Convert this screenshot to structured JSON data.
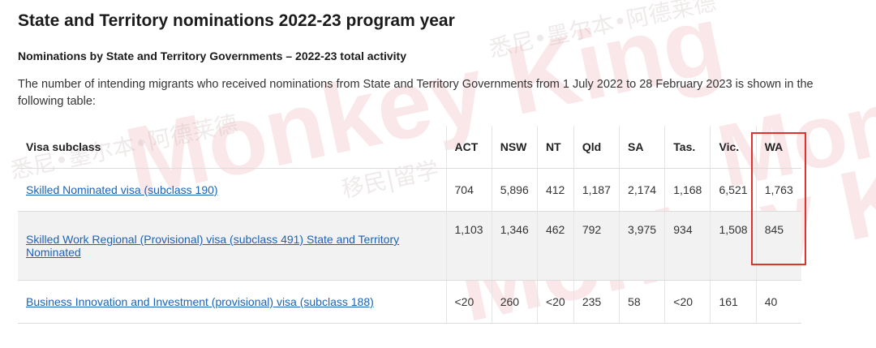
{
  "page": {
    "title": "State and Territory nominations 2022-23 program year",
    "subtitle": "Nominations by State and Territory Governments – 2022-23 total activity",
    "intro": "The number of intending migrants who received nominations from State and Territory Governments from 1 July 2022 to 28 February 2023 is shown in the following table:"
  },
  "table": {
    "headers": [
      "Visa subclass",
      "ACT",
      "NSW",
      "NT",
      "Qld",
      "SA",
      "Tas.",
      "Vic.",
      "WA"
    ],
    "rows": [
      {
        "visa": "Skilled Nominated visa (subclass 190)",
        "values": [
          "704",
          "5,896",
          "412",
          "1,187",
          "2,174",
          "1,168",
          "6,521",
          "1,763"
        ]
      },
      {
        "visa": "Skilled Work Regional (Provisional) visa (subclass 491) State and Territory Nominated",
        "values": [
          "1,103",
          "1,346",
          "462",
          "792",
          "3,975",
          "934",
          "1,508",
          "845"
        ]
      },
      {
        "visa": "Business Innovation and Investment (provisional) visa (subclass 188)",
        "values": [
          "<20",
          "260",
          "<20",
          "235",
          "58",
          "<20",
          "161",
          "40"
        ]
      }
    ]
  },
  "annotation": {
    "highlight_column": "WA",
    "color": "#e0322f"
  },
  "watermark": {
    "text": "Monkey King",
    "cn_text_1": "移民|留学",
    "cn_text_2": "悉尼•墨尔本•阿德莱德"
  }
}
